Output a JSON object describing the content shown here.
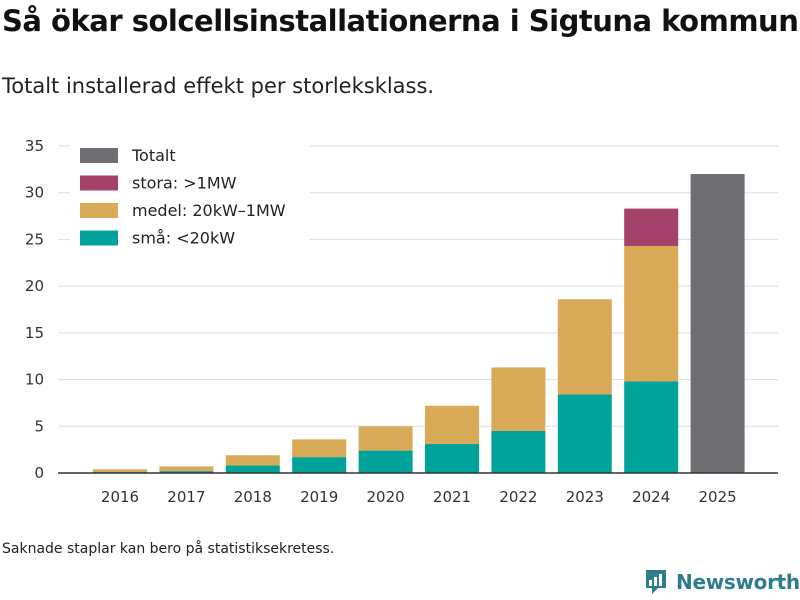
{
  "header": {
    "title": "Så ökar solcellsinstallationerna i Sigtuna kommun",
    "subtitle": "Totalt installerad effekt per storleksklass."
  },
  "footer": {
    "note": "Saknade staplar kan bero på statistiksekretess.",
    "brand": "Newsworthy"
  },
  "colors": {
    "total": "#6f6f74",
    "large": "#a5426a",
    "medium": "#d9ab58",
    "small": "#00a39a",
    "grid": "#dddddd",
    "axis": "#333333",
    "brand": "#2e7d8c"
  },
  "chart_data": {
    "type": "bar",
    "stacked": true,
    "title": "Så ökar solcellsinstallationerna i Sigtuna kommun",
    "subtitle": "Totalt installerad effekt per storleksklass.",
    "xlabel": "",
    "ylabel": "",
    "ylim": [
      0,
      35
    ],
    "yticks": [
      "0",
      "5",
      "10",
      "15",
      "20",
      "25",
      "30",
      "35"
    ],
    "categories": [
      "2016",
      "2017",
      "2018",
      "2019",
      "2020",
      "2021",
      "2022",
      "2023",
      "2024",
      "2025"
    ],
    "series": [
      {
        "name": "små: <20kW",
        "color": "#00a39a",
        "values": [
          0.1,
          0.2,
          0.8,
          1.7,
          2.4,
          3.1,
          4.5,
          8.4,
          9.8,
          null
        ]
      },
      {
        "name": "medel: 20kW–1MW",
        "color": "#d9ab58",
        "values": [
          0.3,
          0.5,
          1.1,
          1.9,
          2.6,
          4.1,
          6.8,
          10.2,
          14.5,
          null
        ]
      },
      {
        "name": "stora: >1MW",
        "color": "#a5426a",
        "values": [
          null,
          null,
          null,
          null,
          null,
          null,
          null,
          null,
          4.0,
          null
        ]
      },
      {
        "name": "Totalt",
        "color": "#6f6f74",
        "values": [
          null,
          null,
          null,
          null,
          null,
          null,
          null,
          null,
          null,
          32.0
        ]
      }
    ],
    "legend": {
      "position": "top-left",
      "order": [
        "Totalt",
        "stora: >1MW",
        "medel: 20kW–1MW",
        "små: <20kW"
      ]
    },
    "grid": true
  }
}
